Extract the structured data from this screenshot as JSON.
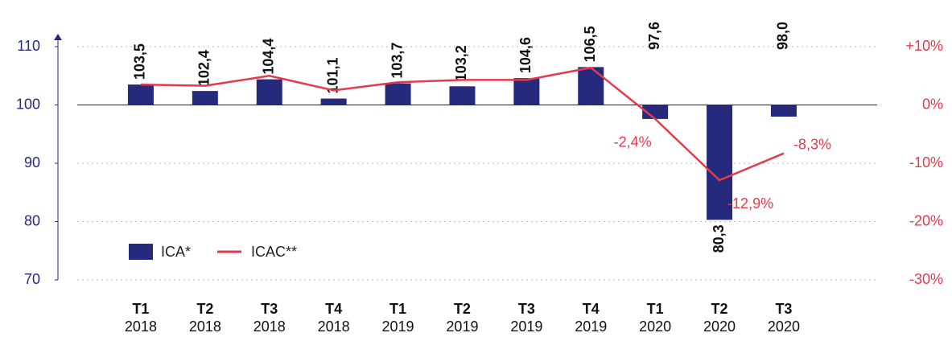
{
  "chart_data": {
    "type": "bar_line",
    "categories": [
      [
        "T1",
        "2018"
      ],
      [
        "T2",
        "2018"
      ],
      [
        "T3",
        "2018"
      ],
      [
        "T4",
        "2018"
      ],
      [
        "T1",
        "2019"
      ],
      [
        "T2",
        "2019"
      ],
      [
        "T3",
        "2019"
      ],
      [
        "T4",
        "2019"
      ],
      [
        "T1",
        "2020"
      ],
      [
        "T2",
        "2020"
      ],
      [
        "T3",
        "2020"
      ]
    ],
    "series": [
      {
        "name": "ICA*",
        "type": "bar",
        "color": "#262a7d",
        "axis": "y",
        "values": [
          103.5,
          102.4,
          104.4,
          101.1,
          103.7,
          103.2,
          104.6,
          106.5,
          97.6,
          80.3,
          98.0
        ],
        "value_labels": [
          "103,5",
          "102,4",
          "104,4",
          "101,1",
          "103,7",
          "103,2",
          "104,6",
          "106,5",
          "97,6",
          "80,3",
          "98,0"
        ]
      },
      {
        "name": "ICAC**",
        "type": "line",
        "color": "#e63a4c",
        "axis": "y2",
        "values": [
          3.5,
          3.3,
          5.0,
          2.5,
          3.9,
          4.3,
          4.3,
          6.4,
          -2.4,
          -12.9,
          -8.3
        ],
        "value_labels": [
          null,
          null,
          null,
          null,
          null,
          null,
          null,
          null,
          "-2,4%",
          "-12,9%",
          "-8,3%"
        ]
      }
    ],
    "ylim": [
      70,
      110
    ],
    "yticks": [
      70,
      80,
      90,
      100,
      110
    ],
    "y2lim": [
      -30,
      10
    ],
    "y2ticks": [
      {
        "value": -30,
        "label": "-30%"
      },
      {
        "value": -20,
        "label": "-20%"
      },
      {
        "value": -10,
        "label": "-10%"
      },
      {
        "value": 0,
        "label": "0%"
      },
      {
        "value": 10,
        "label": "+10%"
      }
    ],
    "bar_base": 100,
    "grid": true,
    "legend": "lower left"
  }
}
